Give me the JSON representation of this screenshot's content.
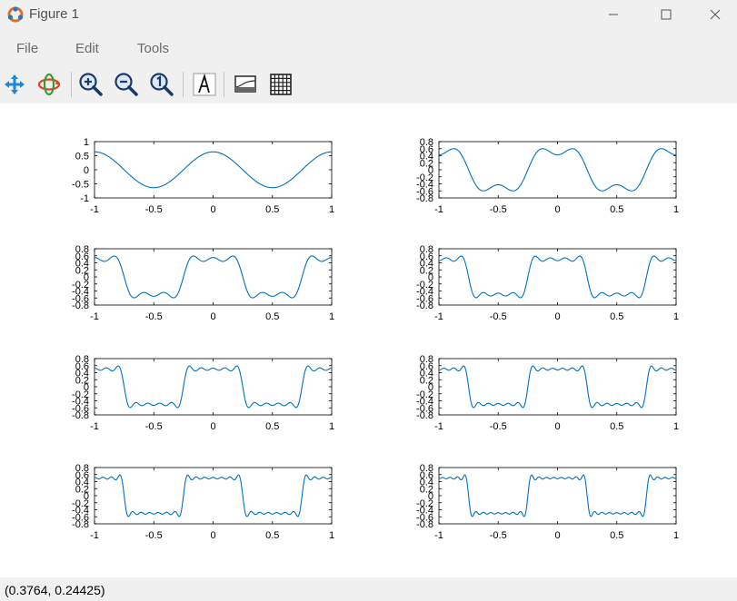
{
  "window": {
    "title": "Figure 1"
  },
  "menu": {
    "file": "File",
    "edit": "Edit",
    "tools": "Tools"
  },
  "toolbar": {
    "tools": [
      "pan-icon",
      "rotate-icon",
      "zoom-in-icon",
      "zoom-out-icon",
      "zoom-reset-icon",
      "text-icon",
      "legend-icon",
      "grid-icon"
    ]
  },
  "status": {
    "coords": "(0.3764, 0.24425)"
  },
  "colors": {
    "line": "#0072bd",
    "chrome": "#f0f0f0"
  },
  "chart_data": [
    {
      "type": "line",
      "harmonics": 1,
      "xlim": [
        -1,
        1
      ],
      "ylim": [
        -1,
        1
      ],
      "xticks": [
        "-1",
        "-0.5",
        "0",
        "0.5",
        "1"
      ],
      "yticks": [
        "1",
        "0.5",
        "0",
        "-0.5",
        "-1"
      ],
      "series": [
        {
          "x": [
            -1,
            -0.75,
            -0.5,
            -0.25,
            0,
            0.25,
            0.5,
            0.75,
            1
          ],
          "y": [
            0.64,
            0,
            -0.64,
            0,
            0.64,
            0,
            -0.64,
            0,
            0.64
          ]
        }
      ]
    },
    {
      "type": "line",
      "harmonics": 3,
      "xlim": [
        -1,
        1
      ],
      "ylim": [
        -0.8,
        0.8
      ],
      "xticks": [
        "-1",
        "-0.5",
        "0",
        "0.5",
        "1"
      ],
      "yticks": [
        "0.8",
        "0.6",
        "0.4",
        "0.2",
        "0",
        "-0.2",
        "-0.4",
        "-0.6",
        "-0.8"
      ],
      "series": [
        {
          "x": [
            -1,
            -0.9,
            -0.75,
            -0.6,
            -0.5,
            -0.4,
            -0.25,
            -0.1,
            0,
            0.1,
            0.25,
            0.4,
            0.5,
            0.6,
            0.75,
            0.9,
            1
          ],
          "y": [
            0.42,
            0.6,
            0,
            -0.6,
            -0.42,
            -0.6,
            0,
            0.6,
            0.42,
            0.6,
            0,
            -0.6,
            -0.42,
            -0.6,
            0,
            0.6,
            0.42
          ]
        }
      ]
    },
    {
      "type": "line",
      "harmonics": 5,
      "xlim": [
        -1,
        1
      ],
      "ylim": [
        -0.8,
        0.8
      ],
      "xticks": [
        "-1",
        "-0.5",
        "0",
        "0.5",
        "1"
      ],
      "yticks": [
        "0.8",
        "0.6",
        "0.4",
        "0.2",
        "0",
        "-0.2",
        "-0.4",
        "-0.6",
        "-0.8"
      ],
      "series": [
        {
          "x": [
            -1,
            -0.75,
            -0.5,
            -0.25,
            0,
            0.25,
            0.5,
            0.75,
            1
          ],
          "y": [
            0.55,
            0,
            -0.55,
            0,
            0.55,
            0,
            -0.55,
            0,
            0.55
          ]
        }
      ]
    },
    {
      "type": "line",
      "harmonics": 7,
      "xlim": [
        -1,
        1
      ],
      "ylim": [
        -0.8,
        0.8
      ],
      "xticks": [
        "-1",
        "-0.5",
        "0",
        "0.5",
        "1"
      ],
      "yticks": [
        "0.8",
        "0.6",
        "0.4",
        "0.2",
        "0",
        "-0.2",
        "-0.4",
        "-0.6",
        "-0.8"
      ],
      "series": [
        {
          "x": [
            -1,
            -0.75,
            -0.5,
            -0.25,
            0,
            0.25,
            0.5,
            0.75,
            1
          ],
          "y": [
            0.52,
            0,
            -0.52,
            0,
            0.52,
            0,
            -0.52,
            0,
            0.52
          ]
        }
      ]
    },
    {
      "type": "line",
      "harmonics": 9,
      "xlim": [
        -1,
        1
      ],
      "ylim": [
        -0.8,
        0.8
      ],
      "xticks": [
        "-1",
        "-0.5",
        "0",
        "0.5",
        "1"
      ],
      "yticks": [
        "0.8",
        "0.6",
        "0.4",
        "0.2",
        "0",
        "-0.2",
        "-0.4",
        "-0.6",
        "-0.8"
      ],
      "series": [
        {
          "x": [
            -1,
            -0.75,
            -0.5,
            -0.25,
            0,
            0.25,
            0.5,
            0.75,
            1
          ],
          "y": [
            0.5,
            0,
            -0.5,
            0,
            0.5,
            0,
            -0.5,
            0,
            0.5
          ]
        }
      ]
    },
    {
      "type": "line",
      "harmonics": 11,
      "xlim": [
        -1,
        1
      ],
      "ylim": [
        -0.8,
        0.8
      ],
      "xticks": [
        "-1",
        "-0.5",
        "0",
        "0.5",
        "1"
      ],
      "yticks": [
        "0.8",
        "0.6",
        "0.4",
        "0.2",
        "0",
        "-0.2",
        "-0.4",
        "-0.6",
        "-0.8"
      ],
      "series": [
        {
          "x": [
            -1,
            -0.75,
            -0.5,
            -0.25,
            0,
            0.25,
            0.5,
            0.75,
            1
          ],
          "y": [
            0.5,
            0,
            -0.5,
            0,
            0.5,
            0,
            -0.5,
            0,
            0.5
          ]
        }
      ]
    },
    {
      "type": "line",
      "harmonics": 13,
      "xlim": [
        -1,
        1
      ],
      "ylim": [
        -0.8,
        0.8
      ],
      "xticks": [
        "-1",
        "-0.5",
        "0",
        "0.5",
        "1"
      ],
      "yticks": [
        "0.8",
        "0.6",
        "0.4",
        "0.2",
        "0",
        "-0.2",
        "-0.4",
        "-0.6",
        "-0.8"
      ],
      "series": [
        {
          "x": [
            -1,
            -0.75,
            -0.5,
            -0.25,
            0,
            0.25,
            0.5,
            0.75,
            1
          ],
          "y": [
            0.5,
            0,
            -0.5,
            0,
            0.5,
            0,
            -0.5,
            0,
            0.5
          ]
        }
      ]
    },
    {
      "type": "line",
      "harmonics": 15,
      "xlim": [
        -1,
        1
      ],
      "ylim": [
        -0.8,
        0.8
      ],
      "xticks": [
        "-1",
        "-0.5",
        "0",
        "0.5",
        "1"
      ],
      "yticks": [
        "0.8",
        "0.6",
        "0.4",
        "0.2",
        "0",
        "-0.2",
        "-0.4",
        "-0.6",
        "-0.8"
      ],
      "series": [
        {
          "x": [
            -1,
            -0.75,
            -0.5,
            -0.25,
            0,
            0.25,
            0.5,
            0.75,
            1
          ],
          "y": [
            0.5,
            0,
            -0.5,
            0,
            0.5,
            0,
            -0.5,
            0,
            0.5
          ]
        }
      ]
    }
  ]
}
